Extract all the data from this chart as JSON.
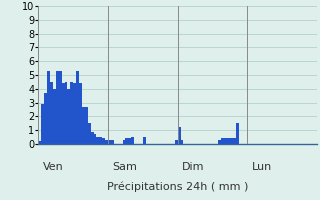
{
  "xlabel": "Précipitations 24h ( mm )",
  "ylim": [
    0,
    10
  ],
  "yticks": [
    0,
    1,
    2,
    3,
    4,
    5,
    6,
    7,
    8,
    9,
    10
  ],
  "background_color": "#dff0ec",
  "bar_color": "#2255cc",
  "grid_color": "#aaccc4",
  "day_line_color": "#888888",
  "values": [
    0.2,
    2.9,
    3.7,
    5.3,
    4.5,
    4.0,
    5.3,
    5.3,
    4.4,
    4.5,
    4.0,
    4.5,
    4.4,
    5.3,
    4.4,
    2.7,
    2.7,
    1.5,
    0.9,
    0.7,
    0.5,
    0.5,
    0.4,
    0.3,
    0.3,
    0.3,
    0.0,
    0.0,
    0.0,
    0.3,
    0.4,
    0.4,
    0.5,
    0.0,
    0.0,
    0.0,
    0.5,
    0.0,
    0.0,
    0.0,
    0.0,
    0.0,
    0.0,
    0.0,
    0.0,
    0.0,
    0.0,
    0.3,
    1.2,
    0.3,
    0.0,
    0.0,
    0.0,
    0.0,
    0.0,
    0.0,
    0.0,
    0.0,
    0.0,
    0.0,
    0.0,
    0.0,
    0.3,
    0.4,
    0.4,
    0.4,
    0.4,
    0.4,
    1.5,
    0.0,
    0.0,
    0.0,
    0.0,
    0.0,
    0.0,
    0.0,
    0.0,
    0.0,
    0.0,
    0.0,
    0.0,
    0.0,
    0.0,
    0.0,
    0.0,
    0.0,
    0.0,
    0.0,
    0.0,
    0.0,
    0.0,
    0.0,
    0.0,
    0.0
  ],
  "n_bars": 96,
  "day_labels": [
    "Ven",
    "Sam",
    "Dim",
    "Lun"
  ],
  "day_positions": [
    0,
    24,
    48,
    72
  ],
  "xlabel_fontsize": 8,
  "tick_fontsize": 7,
  "day_label_fontsize": 8
}
